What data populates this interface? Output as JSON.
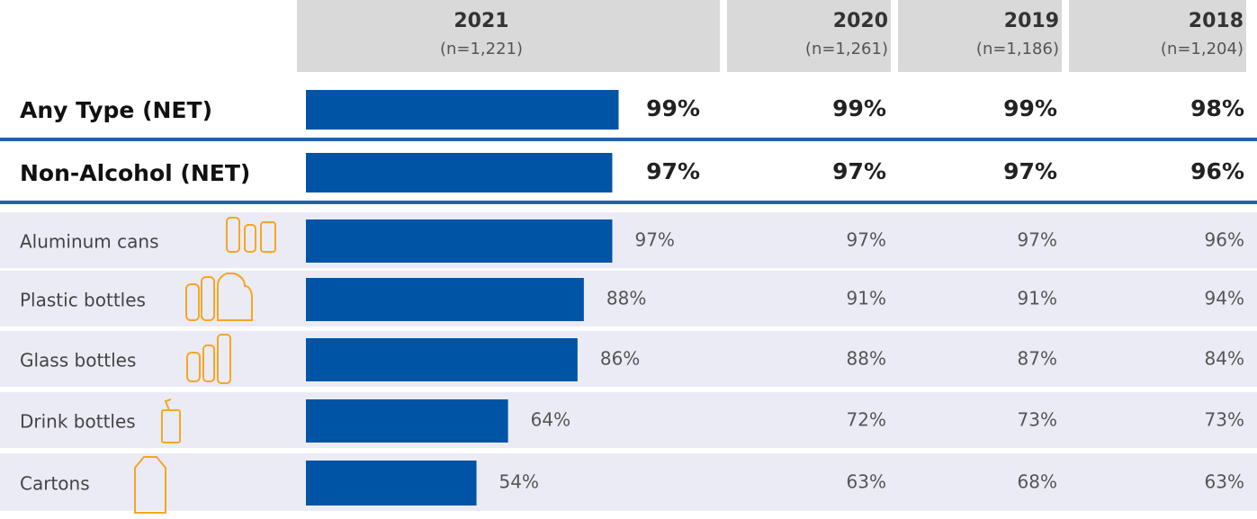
{
  "chart_data": {
    "type": "bar",
    "categories": [
      "Any Type (NET)",
      "Non-Alcohol (NET)",
      "Aluminum cans",
      "Plastic bottles",
      "Glass bottles",
      "Drink bottles",
      "Cartons"
    ],
    "xlim": [
      0,
      100
    ],
    "series": [
      {
        "name": "2021",
        "subtitle": "(n=1,221)",
        "color": "#0054a6",
        "values": [
          99,
          97,
          97,
          88,
          86,
          64,
          54
        ],
        "value_labels": [
          "99%",
          "97%",
          "97%",
          "88%",
          "86%",
          "64%",
          "54%"
        ]
      },
      {
        "name": "2020",
        "subtitle": "(n=1,261)",
        "values": [
          99,
          97,
          97,
          91,
          88,
          72,
          63
        ],
        "value_labels": [
          "99%",
          "97%",
          "97%",
          "91%",
          "88%",
          "72%",
          "63%"
        ]
      },
      {
        "name": "2019",
        "subtitle": "(n=1,186)",
        "values": [
          99,
          97,
          97,
          91,
          87,
          73,
          68
        ],
        "value_labels": [
          "99%",
          "97%",
          "97%",
          "91%",
          "87%",
          "73%",
          "68%"
        ]
      },
      {
        "name": "2018",
        "subtitle": "(n=1,204)",
        "values": [
          98,
          96,
          96,
          94,
          84,
          73,
          63
        ],
        "value_labels": [
          "98%",
          "96%",
          "96%",
          "94%",
          "84%",
          "73%",
          "63%"
        ]
      }
    ]
  }
}
